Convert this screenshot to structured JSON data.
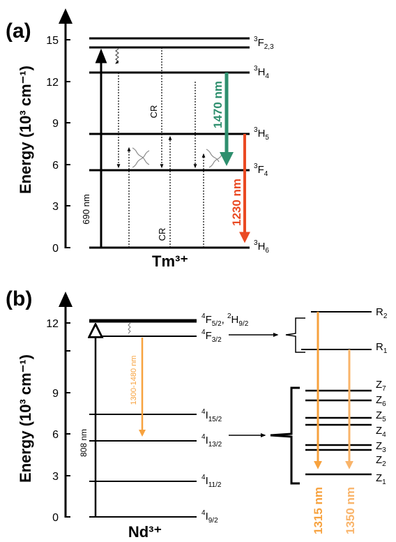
{
  "panel_a": {
    "panel_label": "(a)",
    "axis_label": "Energy (10³ cm⁻¹)",
    "ticks": [
      "0",
      "3",
      "6",
      "9",
      "12",
      "15"
    ],
    "ion_label": "Tm³⁺",
    "levels": [
      {
        "base": "3",
        "term": "H",
        "sub": "6"
      },
      {
        "base": "3",
        "term": "F",
        "sub": "4"
      },
      {
        "base": "3",
        "term": "H",
        "sub": "5"
      },
      {
        "base": "3",
        "term": "H",
        "sub": "4"
      },
      {
        "base": "3",
        "term": "F",
        "sub": "2,3"
      }
    ],
    "pump_label": "690 nm",
    "cr_label_upper": "CR",
    "cr_label_lower": "CR",
    "emission_1": {
      "label": "1470 nm",
      "color": "#2e8f6e"
    },
    "emission_2": {
      "label": "1230 nm",
      "color": "#ea4a23"
    }
  },
  "panel_b": {
    "panel_label": "(b)",
    "axis_label": "Energy (10³ cm⁻¹)",
    "ticks": [
      "0",
      "3",
      "6",
      "9",
      "12"
    ],
    "ion_label": "Nd³⁺",
    "levels": [
      {
        "base": "4",
        "term": "I",
        "sub": "9/2"
      },
      {
        "base": "4",
        "term": "I",
        "sub": "11/2"
      },
      {
        "base": "4",
        "term": "I",
        "sub": "13/2"
      },
      {
        "base": "4",
        "term": "I",
        "sub": "15/2"
      },
      {
        "base": "4",
        "term": "F",
        "sub": "3/2"
      }
    ],
    "top_level": {
      "base1": "4",
      "term1": "F",
      "sub1": "5/2",
      "sep": ", ",
      "base2": "2",
      "term2": "H",
      "sub2": "9/2"
    },
    "pump_label": "808 nm",
    "emission_label": "1300-1480 nm",
    "orange": "#f7a23e",
    "orange_light": "#f9b46a",
    "stark_upper": [
      {
        "term": "R",
        "sub": "2"
      },
      {
        "term": "R",
        "sub": "1"
      }
    ],
    "stark_lower": [
      {
        "term": "Z",
        "sub": "7"
      },
      {
        "term": "Z",
        "sub": "6"
      },
      {
        "term": "Z",
        "sub": "5"
      },
      {
        "term": "Z",
        "sub": "4"
      },
      {
        "term": "Z",
        "sub": "3"
      },
      {
        "term": "Z",
        "sub": "2"
      },
      {
        "term": "Z",
        "sub": "1"
      }
    ],
    "emission_1315": "1315 nm",
    "emission_1350": "1350 nm"
  }
}
